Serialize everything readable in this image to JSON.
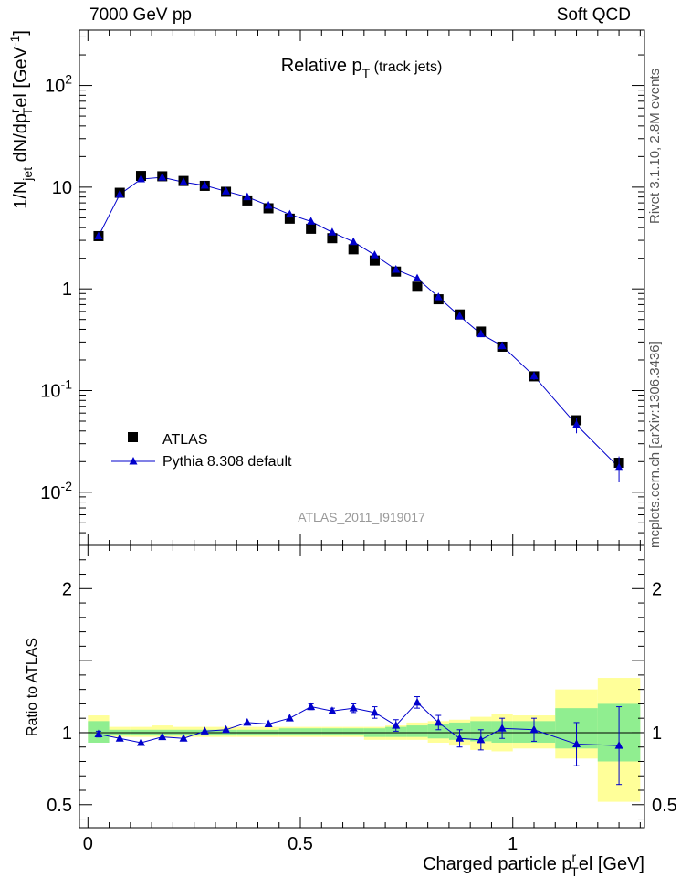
{
  "header": {
    "left": "7000 GeV pp",
    "right": "Soft QCD"
  },
  "side_labels": {
    "rivet": "Rivet 3.1.10,  2.8M events",
    "mcplots": "mcplots.cern.ch [arXiv:1306.3436]"
  },
  "colors": {
    "data": "#000000",
    "mc": "#0000cc",
    "band_inner": "#90ee90",
    "band_outer": "#ffff99"
  },
  "chart_data": [
    {
      "type": "scatter",
      "title": "Relative p_T (track jets)",
      "title_main": "Relative p",
      "title_sub": "T",
      "title_extra": "(track jets)",
      "ylabel": "1/N_jet dN/dp_T^rel [GeV^-1]",
      "y_scale": "log",
      "ylim": [
        0.003,
        350
      ],
      "xlim": [
        -0.02,
        1.31
      ],
      "y_ticks": [
        {
          "value": 0.01,
          "base": "10",
          "exp": "-2"
        },
        {
          "value": 0.1,
          "base": "10",
          "exp": "-1"
        },
        {
          "value": 1,
          "base": "1",
          "exp": ""
        },
        {
          "value": 10,
          "base": "10",
          "exp": ""
        },
        {
          "value": 100,
          "base": "10",
          "exp": "2"
        }
      ],
      "watermark": "ATLAS_2011_I919017",
      "legend_position": "lower-left",
      "series": [
        {
          "name": "ATLAS",
          "marker": "square",
          "x": [
            0.025,
            0.075,
            0.125,
            0.175,
            0.225,
            0.275,
            0.325,
            0.375,
            0.425,
            0.475,
            0.525,
            0.575,
            0.625,
            0.675,
            0.725,
            0.775,
            0.825,
            0.875,
            0.925,
            0.975,
            1.05,
            1.15,
            1.25
          ],
          "y": [
            3.3,
            8.8,
            12.9,
            12.8,
            11.5,
            10.3,
            9.0,
            7.4,
            6.2,
            4.9,
            3.9,
            3.15,
            2.45,
            1.9,
            1.48,
            1.05,
            0.79,
            0.56,
            0.38,
            0.27,
            0.138,
            0.051,
            0.0195
          ]
        },
        {
          "name": "Pythia 8.308 default",
          "marker": "triangle",
          "x": [
            0.025,
            0.075,
            0.125,
            0.175,
            0.225,
            0.275,
            0.325,
            0.375,
            0.425,
            0.475,
            0.525,
            0.575,
            0.625,
            0.675,
            0.725,
            0.775,
            0.825,
            0.875,
            0.925,
            0.975,
            1.05,
            1.15,
            1.25
          ],
          "y": [
            3.3,
            8.5,
            12.0,
            12.5,
            11.2,
            10.4,
            9.1,
            8.0,
            6.6,
            5.4,
            4.6,
            3.6,
            2.9,
            2.15,
            1.55,
            1.27,
            0.83,
            0.54,
            0.36,
            0.275,
            0.139,
            0.046,
            0.0175
          ],
          "yerr": [
            0.08,
            0.15,
            0.2,
            0.2,
            0.2,
            0.2,
            0.15,
            0.15,
            0.12,
            0.1,
            0.1,
            0.08,
            0.07,
            0.06,
            0.05,
            0.05,
            0.04,
            0.03,
            0.025,
            0.02,
            0.012,
            0.008,
            0.005
          ]
        }
      ]
    },
    {
      "type": "scatter",
      "ylabel": "Ratio to ATLAS",
      "xlabel": "Charged particle p_T^rel [GeV]",
      "xlabel_main": "Charged particle p",
      "xlabel_sup": "r",
      "xlabel_sub": "T",
      "xlabel_tail": "el [GeV]",
      "ylim": [
        0.34,
        2.3
      ],
      "xlim": [
        -0.02,
        1.31
      ],
      "y_ticks": [
        "0.5",
        "1",
        "2"
      ],
      "x_ticks": [
        "0",
        "0.5",
        "1"
      ],
      "bands": {
        "x_edges": [
          0.0,
          0.05,
          0.1,
          0.15,
          0.2,
          0.25,
          0.3,
          0.35,
          0.4,
          0.45,
          0.5,
          0.55,
          0.6,
          0.65,
          0.7,
          0.75,
          0.8,
          0.85,
          0.9,
          0.95,
          1.0,
          1.1,
          1.2,
          1.3
        ],
        "inner": [
          [
            0.93,
            1.08
          ],
          [
            0.98,
            1.02
          ],
          [
            0.98,
            1.02
          ],
          [
            0.98,
            1.02
          ],
          [
            0.98,
            1.02
          ],
          [
            0.98,
            1.02
          ],
          [
            0.98,
            1.02
          ],
          [
            0.98,
            1.02
          ],
          [
            0.98,
            1.02
          ],
          [
            0.98,
            1.03
          ],
          [
            0.98,
            1.03
          ],
          [
            0.98,
            1.03
          ],
          [
            0.98,
            1.03
          ],
          [
            0.97,
            1.03
          ],
          [
            0.97,
            1.04
          ],
          [
            0.97,
            1.05
          ],
          [
            0.96,
            1.06
          ],
          [
            0.95,
            1.07
          ],
          [
            0.94,
            1.08
          ],
          [
            0.93,
            1.08
          ],
          [
            0.93,
            1.08
          ],
          [
            0.89,
            1.17
          ],
          [
            0.8,
            1.2
          ]
        ],
        "outer": [
          [
            0.95,
            1.12
          ],
          [
            0.97,
            1.04
          ],
          [
            0.97,
            1.04
          ],
          [
            0.97,
            1.05
          ],
          [
            0.97,
            1.04
          ],
          [
            0.97,
            1.04
          ],
          [
            0.97,
            1.04
          ],
          [
            0.97,
            1.04
          ],
          [
            0.97,
            1.04
          ],
          [
            0.97,
            1.04
          ],
          [
            0.97,
            1.04
          ],
          [
            0.97,
            1.04
          ],
          [
            0.97,
            1.04
          ],
          [
            0.95,
            1.04
          ],
          [
            0.95,
            1.05
          ],
          [
            0.95,
            1.07
          ],
          [
            0.93,
            1.08
          ],
          [
            0.91,
            1.09
          ],
          [
            0.88,
            1.11
          ],
          [
            0.87,
            1.13
          ],
          [
            0.89,
            1.12
          ],
          [
            0.82,
            1.3
          ],
          [
            0.52,
            1.38
          ]
        ]
      },
      "series": [
        {
          "name": "Pythia 8.308 default",
          "x": [
            0.025,
            0.075,
            0.125,
            0.175,
            0.225,
            0.275,
            0.325,
            0.375,
            0.425,
            0.475,
            0.525,
            0.575,
            0.625,
            0.675,
            0.725,
            0.775,
            0.825,
            0.875,
            0.925,
            0.975,
            1.05,
            1.15,
            1.25
          ],
          "y": [
            0.99,
            0.96,
            0.93,
            0.97,
            0.96,
            1.01,
            1.02,
            1.07,
            1.06,
            1.1,
            1.18,
            1.15,
            1.17,
            1.14,
            1.05,
            1.21,
            1.07,
            0.96,
            0.95,
            1.03,
            1.02,
            0.92,
            0.91
          ],
          "yerr": [
            0.02,
            0.01,
            0.01,
            0.01,
            0.01,
            0.01,
            0.01,
            0.01,
            0.01,
            0.01,
            0.02,
            0.02,
            0.03,
            0.04,
            0.04,
            0.04,
            0.05,
            0.06,
            0.07,
            0.07,
            0.08,
            0.15,
            0.27
          ]
        }
      ]
    }
  ]
}
